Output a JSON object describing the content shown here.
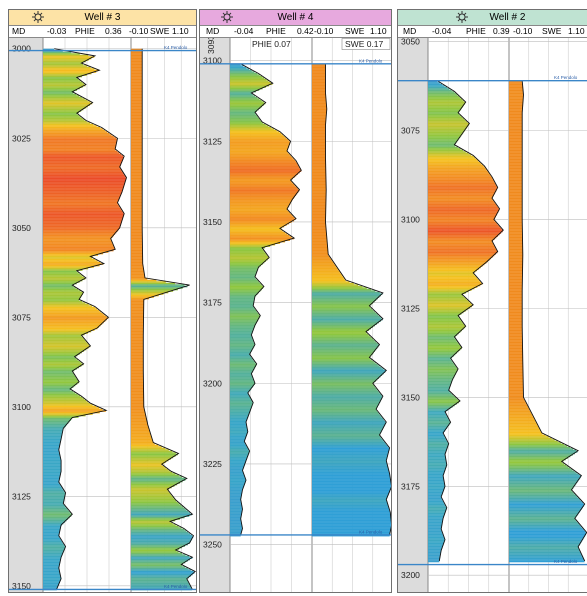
{
  "colors": {
    "well3_header": "#fde3a6",
    "well4_header": "#e7a9de",
    "well2_header": "#bfe3d2",
    "marker_line": "#3a86c8",
    "depth_track": "#dcdcdc",
    "phie_fill_ramp": [
      "#e8352a",
      "#f28a22",
      "#f5c21e",
      "#8cc640",
      "#38a6c8",
      "#3f8fd8"
    ],
    "swe_fill_ramp": [
      "#f08a1e",
      "#f5c21e",
      "#8cc640",
      "#2f9fd6"
    ]
  },
  "chart_data": [
    {
      "type": "line",
      "well": "Well # 3",
      "icon": "well-symbol-icon",
      "track_headers": {
        "md": "MD",
        "phie_min": "-0.03",
        "phie": "PHIE",
        "phie_max": "0.36",
        "swe_min": "-0.10",
        "swe": "SWE",
        "swe_max": "1.10"
      },
      "depth_range": [
        2997,
        3152
      ],
      "depth_ticks": [
        "3000",
        "3025",
        "3050",
        "3075",
        "3100",
        "3125",
        "3150"
      ],
      "markers": [
        {
          "depth": 3000.5,
          "label": "K4 Pendolo"
        },
        {
          "depth": 3151,
          "label": "K4 Pendolo"
        }
      ],
      "phie_range": [
        -0.03,
        0.36
      ],
      "swe_range": [
        -0.1,
        1.1
      ],
      "phie": {
        "depth": [
          3000,
          3002,
          3004,
          3006,
          3008,
          3010,
          3012,
          3015,
          3018,
          3020,
          3022,
          3025,
          3028,
          3030,
          3033,
          3036,
          3040,
          3043,
          3046,
          3050,
          3053,
          3056,
          3058,
          3060,
          3062,
          3064,
          3066,
          3068,
          3070,
          3072,
          3075,
          3078,
          3080,
          3083,
          3086,
          3088,
          3090,
          3093,
          3095,
          3097,
          3099,
          3101,
          3103,
          3106,
          3109,
          3112,
          3115,
          3118,
          3121,
          3124,
          3127,
          3130,
          3133,
          3136,
          3139,
          3142,
          3145,
          3148,
          3151
        ],
        "value": [
          0.02,
          0.2,
          0.14,
          0.22,
          0.12,
          0.16,
          0.1,
          0.19,
          0.12,
          0.16,
          0.23,
          0.3,
          0.29,
          0.33,
          0.31,
          0.34,
          0.32,
          0.3,
          0.33,
          0.31,
          0.27,
          0.29,
          0.18,
          0.24,
          0.12,
          0.16,
          0.1,
          0.15,
          0.13,
          0.2,
          0.26,
          0.21,
          0.14,
          0.18,
          0.11,
          0.15,
          0.1,
          0.13,
          0.09,
          0.14,
          0.18,
          0.25,
          0.1,
          0.06,
          0.05,
          0.04,
          0.05,
          0.05,
          0.04,
          0.07,
          0.06,
          0.1,
          0.05,
          0.04,
          0.07,
          0.05,
          0.04,
          0.05,
          0.03
        ]
      },
      "swe": {
        "depth": [
          3000,
          3010,
          3020,
          3030,
          3040,
          3050,
          3060,
          3064,
          3066,
          3070,
          3080,
          3090,
          3100,
          3105,
          3110,
          3113,
          3116,
          3118,
          3120,
          3123,
          3126,
          3130,
          3132,
          3134,
          3136,
          3138,
          3140,
          3142,
          3144,
          3146,
          3148,
          3151
        ],
        "value": [
          0.1,
          0.1,
          0.1,
          0.1,
          0.1,
          0.1,
          0.11,
          0.15,
          0.95,
          0.13,
          0.12,
          0.12,
          0.13,
          0.2,
          0.3,
          0.75,
          0.45,
          0.62,
          0.9,
          0.55,
          0.7,
          1.0,
          0.6,
          0.85,
          1.02,
          0.95,
          0.7,
          1.0,
          0.8,
          1.05,
          0.9,
          1.0
        ]
      }
    },
    {
      "type": "line",
      "well": "Well # 4",
      "icon": "well-symbol-icon",
      "track_headers": {
        "md": "MD",
        "phie_min": "-0.04",
        "phie": "PHIE",
        "phie_max": "0.42",
        "swe_min": "-0.10",
        "swe": "SWE",
        "swe_max": "1.10"
      },
      "depth_range": [
        3093,
        3265
      ],
      "depth_ticks": [
        "3100",
        "3125",
        "3150",
        "3175",
        "3200",
        "3225",
        "3250"
      ],
      "rotated_label": "3093",
      "phie_average_label": "PHIE 0.07",
      "swe_average_label": "SWE 0.17",
      "markers": [
        {
          "depth": 3101,
          "label": "K4 Pendolo"
        },
        {
          "depth": 3247,
          "label": "K4 Pendolo"
        }
      ],
      "phie_range": [
        -0.04,
        0.42
      ],
      "swe_range": [
        -0.1,
        1.1
      ],
      "phie": {
        "depth": [
          3101,
          3104,
          3107,
          3110,
          3113,
          3116,
          3119,
          3122,
          3125,
          3128,
          3131,
          3134,
          3137,
          3140,
          3143,
          3146,
          3149,
          3152,
          3155,
          3158,
          3161,
          3164,
          3167,
          3170,
          3173,
          3176,
          3179,
          3182,
          3185,
          3188,
          3191,
          3194,
          3197,
          3200,
          3203,
          3206,
          3209,
          3212,
          3215,
          3218,
          3221,
          3224,
          3227,
          3230,
          3233,
          3236,
          3239,
          3242,
          3245,
          3247
        ],
        "value": [
          0.02,
          0.12,
          0.2,
          0.08,
          0.16,
          0.1,
          0.14,
          0.24,
          0.3,
          0.28,
          0.33,
          0.36,
          0.3,
          0.35,
          0.31,
          0.28,
          0.33,
          0.24,
          0.32,
          0.14,
          0.18,
          0.12,
          0.1,
          0.15,
          0.1,
          0.09,
          0.13,
          0.1,
          0.08,
          0.1,
          0.07,
          0.11,
          0.08,
          0.1,
          0.06,
          0.09,
          0.07,
          0.05,
          0.06,
          0.04,
          0.07,
          0.05,
          0.03,
          0.05,
          0.03,
          0.02,
          0.03,
          0.02,
          0.03,
          0.02
        ]
      },
      "swe": {
        "depth": [
          3101,
          3110,
          3115,
          3120,
          3130,
          3140,
          3150,
          3160,
          3168,
          3172,
          3176,
          3180,
          3184,
          3188,
          3192,
          3196,
          3200,
          3204,
          3208,
          3212,
          3216,
          3220,
          3224,
          3228,
          3232,
          3236,
          3240,
          3244,
          3247
        ],
        "value": [
          0.1,
          0.1,
          0.12,
          0.1,
          0.1,
          0.11,
          0.1,
          0.14,
          0.4,
          0.95,
          0.75,
          0.95,
          0.7,
          0.9,
          0.75,
          1.0,
          0.8,
          0.95,
          0.85,
          1.0,
          0.9,
          1.05,
          1.0,
          1.05,
          1.08,
          1.0,
          1.06,
          1.08,
          1.05
        ]
      }
    },
    {
      "type": "line",
      "well": "Well # 2",
      "icon": "well-symbol-icon",
      "track_headers": {
        "md": "MD",
        "phie_min": "-0.04",
        "phie": "PHIE",
        "phie_max": "0.39",
        "swe_min": "-0.10",
        "swe": "SWE",
        "swe_max": "1.10"
      },
      "depth_range": [
        3049,
        3205
      ],
      "depth_ticks": [
        "3050",
        "3075",
        "3100",
        "3125",
        "3150",
        "3175",
        "3200"
      ],
      "markers": [
        {
          "depth": 3061,
          "label": "K4 Pendolo"
        },
        {
          "depth": 3197,
          "label": "K4 Pendolo"
        }
      ],
      "phie_range": [
        -0.04,
        0.39
      ],
      "swe_range": [
        -0.1,
        1.1
      ],
      "phie": {
        "depth": [
          3061,
          3064,
          3067,
          3070,
          3073,
          3076,
          3079,
          3082,
          3085,
          3088,
          3091,
          3094,
          3097,
          3100,
          3103,
          3106,
          3109,
          3112,
          3115,
          3118,
          3121,
          3124,
          3127,
          3130,
          3133,
          3136,
          3139,
          3142,
          3145,
          3148,
          3151,
          3154,
          3157,
          3160,
          3163,
          3166,
          3169,
          3172,
          3175,
          3178,
          3181,
          3184,
          3187,
          3190,
          3193,
          3196
        ],
        "value": [
          0.01,
          0.1,
          0.16,
          0.12,
          0.18,
          0.14,
          0.1,
          0.2,
          0.26,
          0.3,
          0.33,
          0.3,
          0.34,
          0.31,
          0.36,
          0.3,
          0.33,
          0.27,
          0.2,
          0.25,
          0.14,
          0.2,
          0.12,
          0.16,
          0.1,
          0.14,
          0.08,
          0.12,
          0.09,
          0.07,
          0.13,
          0.05,
          0.08,
          0.04,
          0.07,
          0.05,
          0.06,
          0.04,
          0.05,
          0.03,
          0.06,
          0.04,
          0.03,
          0.05,
          0.03,
          0.02
        ]
      },
      "swe": {
        "depth": [
          3061,
          3065,
          3070,
          3080,
          3090,
          3100,
          3110,
          3120,
          3130,
          3140,
          3150,
          3160,
          3165,
          3168,
          3172,
          3176,
          3180,
          3184,
          3188,
          3192,
          3196
        ],
        "value": [
          0.1,
          0.12,
          0.1,
          0.1,
          0.1,
          0.1,
          0.11,
          0.1,
          0.1,
          0.11,
          0.12,
          0.4,
          0.95,
          0.7,
          1.0,
          0.85,
          1.05,
          0.9,
          1.08,
          0.95,
          1.05
        ]
      }
    }
  ]
}
